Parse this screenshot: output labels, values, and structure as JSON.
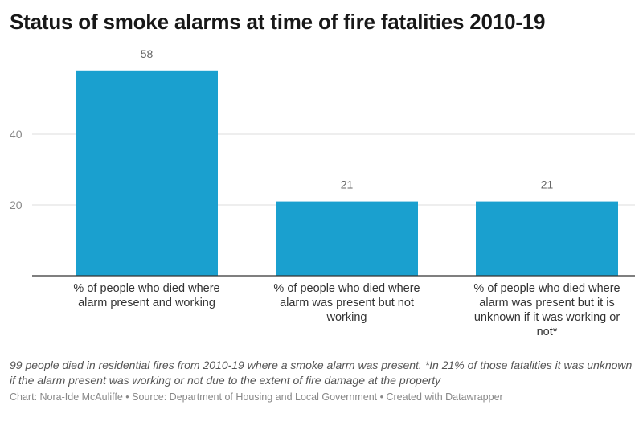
{
  "header": {
    "title": "Status of smoke alarms at time of fire fatalities 2010-19"
  },
  "chart_data": {
    "type": "bar",
    "title": "Status of smoke alarms at time of fire fatalities 2010-19",
    "xlabel": "",
    "ylabel": "",
    "categories": [
      "% of people who died where alarm present and working",
      "% of people who died where alarm was present but not working",
      "% of people who died where alarm was present but it is unknown if it was working or not*"
    ],
    "values": [
      58,
      21,
      21
    ],
    "data_labels": [
      "58",
      "21",
      "21"
    ],
    "y_ticks": [
      20,
      40
    ],
    "y_tick_labels": [
      "20",
      "40"
    ],
    "ylim": [
      0,
      62
    ],
    "grid": true,
    "bar_color": "#1aa0cf",
    "grid_color": "#dcdcdc",
    "axis_color": "#333333"
  },
  "notes": "99 people died in residential fires from 2010-19 where a smoke alarm was present. *In 21% of those fatalities it was unknown if the alarm present was working or not due to the extent of fire damage at the property",
  "footer": {
    "credit": "Chart: Nora-Ide McAuliffe • Source: Department of Housing and Local Government • Created with Datawrapper"
  }
}
